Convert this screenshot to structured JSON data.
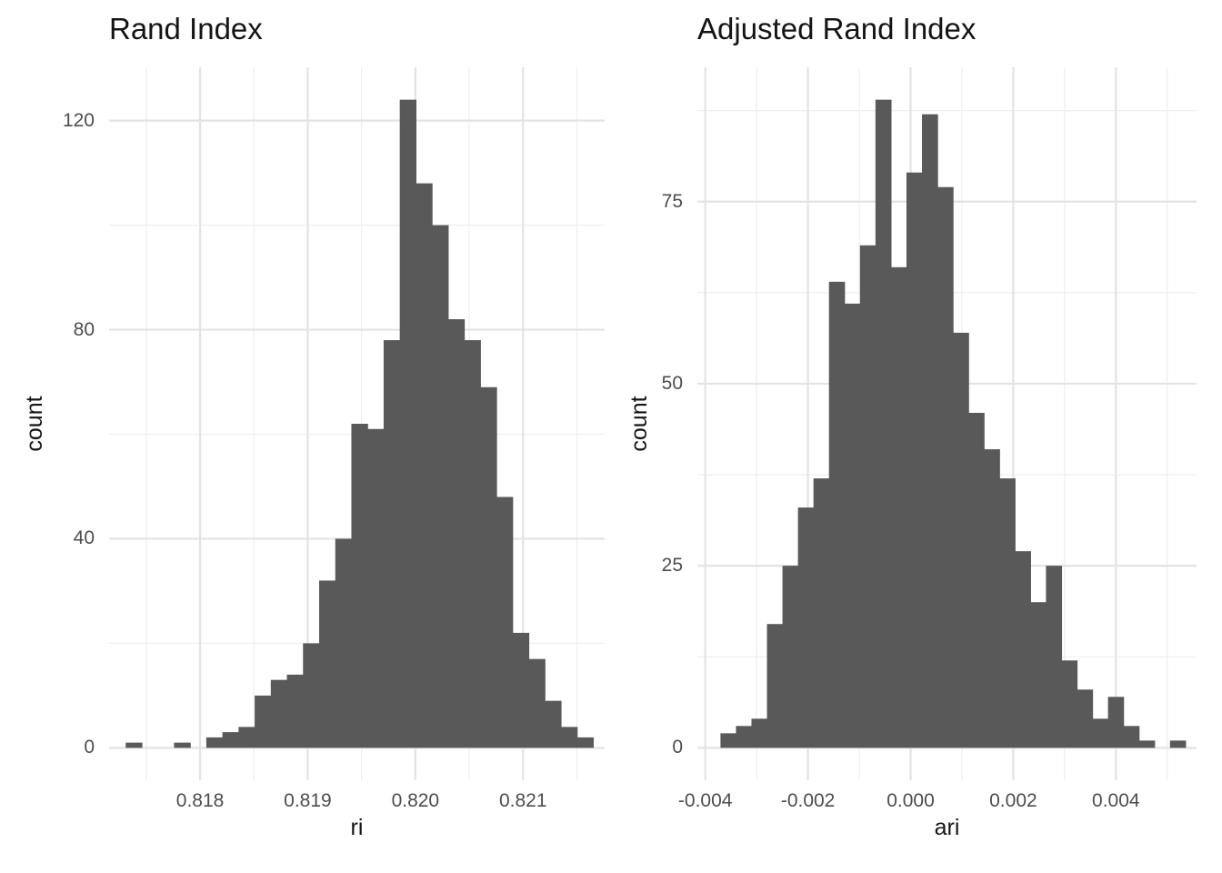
{
  "figure": {
    "background": "#FFFFFF"
  },
  "colors": {
    "bar_fill": "#595959",
    "grid_major": "#E3E3E3",
    "grid_minor": "#EFEFEF",
    "tick_label": "#4D4D4D",
    "title_text": "#141414",
    "axis_title_text": "#141414"
  },
  "chart_data": [
    {
      "type": "bar",
      "subtype": "histogram",
      "title": "Rand Index",
      "xlabel": "ri",
      "ylabel": "count",
      "bin_start": 0.8173116,
      "bin_width": 0.00014975,
      "counts": [
        1,
        0,
        0,
        1,
        0,
        2,
        3,
        4,
        10,
        13,
        14,
        20,
        32,
        40,
        62,
        61,
        78,
        124,
        108,
        100,
        82,
        78,
        69,
        48,
        22,
        17,
        9,
        4,
        2
      ],
      "xlim": [
        0.817155,
        0.821758
      ],
      "ylim": [
        -6.2,
        130.2
      ],
      "x_major_breaks": [
        0.818,
        0.819,
        0.82,
        0.821
      ],
      "x_major_labels": [
        "0.818",
        "0.819",
        "0.820",
        "0.821"
      ],
      "x_minor_breaks": [
        0.8175,
        0.8185,
        0.8195,
        0.8205,
        0.8215
      ],
      "y_major_breaks": [
        0,
        40,
        80,
        120
      ],
      "y_major_labels": [
        "0",
        "40",
        "80",
        "120"
      ],
      "y_minor_breaks": [
        20,
        60,
        100
      ],
      "grid": "on",
      "legend_position": "none"
    },
    {
      "type": "bar",
      "subtype": "histogram",
      "title": "Adjusted Rand Index",
      "xlabel": "ari",
      "ylabel": "count",
      "bin_start": -0.003699,
      "bin_width": 0.000302,
      "counts": [
        2,
        3,
        4,
        17,
        25,
        33,
        37,
        64,
        61,
        69,
        89,
        66,
        79,
        87,
        77,
        57,
        46,
        41,
        37,
        27,
        20,
        25,
        12,
        8,
        4,
        7,
        3,
        1,
        0,
        1
      ],
      "xlim": [
        -0.004154,
        0.005571
      ],
      "ylim": [
        -4.45,
        93.45
      ],
      "x_major_breaks": [
        -0.004,
        -0.002,
        0,
        0.002,
        0.004
      ],
      "x_major_labels": [
        "-0.004",
        "-0.002",
        "0.000",
        "0.002",
        "0.004"
      ],
      "x_minor_breaks": [
        -0.003,
        -0.001,
        0.001,
        0.003,
        0.005
      ],
      "y_major_breaks": [
        0,
        25,
        50,
        75
      ],
      "y_major_labels": [
        "0",
        "25",
        "50",
        "75"
      ],
      "y_minor_breaks": [
        12.5,
        37.5,
        62.5,
        87.5
      ],
      "grid": "on",
      "legend_position": "none"
    }
  ]
}
